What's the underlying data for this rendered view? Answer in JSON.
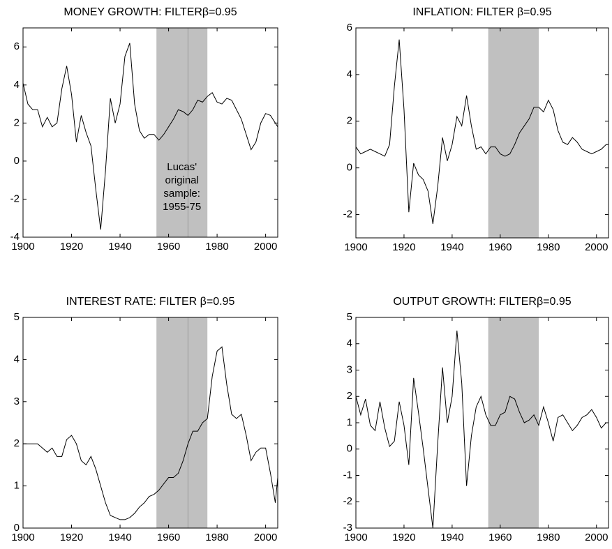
{
  "chart_data": [
    {
      "type": "line",
      "title": "MONEY GROWTH: FILTERβ=0.95",
      "color": "#000000",
      "shade": [
        1955,
        1976
      ],
      "shade_color": "#c0c0c0",
      "vline": 1968,
      "vline_color": "#9a9a9a",
      "annotation": [
        "Lucas'",
        "original",
        "sample:",
        "1955-75"
      ],
      "xlim": [
        1900,
        2005
      ],
      "xticks": [
        1900,
        1920,
        1940,
        1960,
        1980,
        2000
      ],
      "ylim": [
        -4,
        7
      ],
      "yticks": [
        -4,
        -2,
        0,
        2,
        4,
        6
      ],
      "x": [
        1900,
        1902,
        1904,
        1906,
        1908,
        1910,
        1912,
        1914,
        1916,
        1918,
        1920,
        1922,
        1924,
        1926,
        1928,
        1930,
        1932,
        1934,
        1936,
        1938,
        1940,
        1942,
        1944,
        1946,
        1948,
        1950,
        1952,
        1954,
        1956,
        1958,
        1960,
        1962,
        1964,
        1966,
        1968,
        1970,
        1972,
        1974,
        1976,
        1978,
        1980,
        1982,
        1984,
        1986,
        1988,
        1990,
        1992,
        1994,
        1996,
        1998,
        2000,
        2002,
        2004,
        2005
      ],
      "values": [
        4.1,
        3.0,
        2.7,
        2.7,
        1.8,
        2.3,
        1.8,
        2.0,
        3.8,
        5.0,
        3.5,
        1.0,
        2.4,
        1.5,
        0.8,
        -1.5,
        -3.6,
        -0.5,
        3.3,
        2.0,
        3.0,
        5.5,
        6.2,
        3.0,
        1.6,
        1.2,
        1.4,
        1.4,
        1.1,
        1.4,
        1.8,
        2.2,
        2.7,
        2.6,
        2.4,
        2.7,
        3.2,
        3.1,
        3.4,
        3.6,
        3.1,
        3.0,
        3.3,
        3.2,
        2.7,
        2.2,
        1.4,
        0.6,
        1.0,
        2.0,
        2.5,
        2.4,
        2.0,
        1.8
      ]
    },
    {
      "type": "line",
      "title": "INFLATION: FILTER β=0.95",
      "color": "#000000",
      "shade": [
        1955,
        1976
      ],
      "shade_color": "#c0c0c0",
      "xlim": [
        1900,
        2005
      ],
      "xticks": [
        1900,
        1920,
        1940,
        1960,
        1980,
        2000
      ],
      "ylim": [
        -3,
        6
      ],
      "yticks": [
        -2,
        0,
        2,
        4,
        6
      ],
      "x": [
        1900,
        1902,
        1904,
        1906,
        1908,
        1910,
        1912,
        1914,
        1916,
        1918,
        1920,
        1922,
        1924,
        1926,
        1928,
        1930,
        1932,
        1934,
        1936,
        1938,
        1940,
        1942,
        1944,
        1946,
        1948,
        1950,
        1952,
        1954,
        1956,
        1958,
        1960,
        1962,
        1964,
        1966,
        1968,
        1970,
        1972,
        1974,
        1976,
        1978,
        1980,
        1982,
        1984,
        1986,
        1988,
        1990,
        1992,
        1994,
        1996,
        1998,
        2000,
        2002,
        2004,
        2005
      ],
      "values": [
        0.9,
        0.6,
        0.7,
        0.8,
        0.7,
        0.6,
        0.5,
        1.0,
        3.5,
        5.5,
        2.5,
        -1.9,
        0.2,
        -0.3,
        -0.5,
        -1.0,
        -2.4,
        -0.8,
        1.3,
        0.3,
        1.0,
        2.2,
        1.8,
        3.1,
        1.8,
        0.8,
        0.9,
        0.6,
        0.9,
        0.9,
        0.6,
        0.5,
        0.6,
        1.0,
        1.5,
        1.8,
        2.1,
        2.6,
        2.6,
        2.4,
        2.9,
        2.5,
        1.6,
        1.1,
        1.0,
        1.3,
        1.1,
        0.8,
        0.7,
        0.6,
        0.7,
        0.8,
        1.0,
        1.0
      ]
    },
    {
      "type": "line",
      "title": "INTEREST RATE: FILTER β=0.95",
      "color": "#000000",
      "shade": [
        1955,
        1976
      ],
      "shade_color": "#c0c0c0",
      "vline": 1968,
      "vline_color": "#9a9a9a",
      "xlim": [
        1900,
        2005
      ],
      "xticks": [
        1900,
        1920,
        1940,
        1960,
        1980,
        2000
      ],
      "ylim": [
        0,
        5
      ],
      "yticks": [
        0,
        1,
        2,
        3,
        4,
        5
      ],
      "x": [
        1900,
        1902,
        1904,
        1906,
        1908,
        1910,
        1912,
        1914,
        1916,
        1918,
        1920,
        1922,
        1924,
        1926,
        1928,
        1930,
        1932,
        1934,
        1936,
        1938,
        1940,
        1942,
        1944,
        1946,
        1948,
        1950,
        1952,
        1954,
        1956,
        1958,
        1960,
        1962,
        1964,
        1966,
        1968,
        1970,
        1972,
        1974,
        1976,
        1978,
        1980,
        1982,
        1984,
        1986,
        1988,
        1990,
        1992,
        1994,
        1996,
        1998,
        2000,
        2002,
        2004,
        2005
      ],
      "values": [
        2.0,
        2.0,
        2.0,
        2.0,
        1.9,
        1.8,
        1.9,
        1.7,
        1.7,
        2.1,
        2.2,
        2.0,
        1.6,
        1.5,
        1.7,
        1.4,
        1.0,
        0.6,
        0.3,
        0.25,
        0.2,
        0.2,
        0.25,
        0.35,
        0.5,
        0.6,
        0.75,
        0.8,
        0.9,
        1.05,
        1.2,
        1.2,
        1.3,
        1.6,
        2.0,
        2.3,
        2.3,
        2.5,
        2.6,
        3.6,
        4.2,
        4.3,
        3.4,
        2.7,
        2.6,
        2.7,
        2.2,
        1.6,
        1.8,
        1.9,
        1.9,
        1.3,
        0.6,
        1.2
      ]
    },
    {
      "type": "line",
      "title": "OUTPUT GROWTH: FILTERβ=0.95",
      "color": "#000000",
      "shade": [
        1955,
        1976
      ],
      "shade_color": "#c0c0c0",
      "xlim": [
        1900,
        2005
      ],
      "xticks": [
        1900,
        1920,
        1940,
        1960,
        1980,
        2000
      ],
      "ylim": [
        -3,
        5
      ],
      "yticks": [
        -3,
        -2,
        -1,
        0,
        1,
        2,
        3,
        4,
        5
      ],
      "x": [
        1900,
        1902,
        1904,
        1906,
        1908,
        1910,
        1912,
        1914,
        1916,
        1918,
        1920,
        1922,
        1924,
        1926,
        1928,
        1930,
        1932,
        1934,
        1936,
        1938,
        1940,
        1942,
        1944,
        1946,
        1948,
        1950,
        1952,
        1954,
        1956,
        1958,
        1960,
        1962,
        1964,
        1966,
        1968,
        1970,
        1972,
        1974,
        1976,
        1978,
        1980,
        1982,
        1984,
        1986,
        1988,
        1990,
        1992,
        1994,
        1996,
        1998,
        2000,
        2002,
        2004,
        2005
      ],
      "values": [
        2.0,
        1.3,
        1.9,
        0.9,
        0.7,
        1.8,
        0.8,
        0.1,
        0.3,
        1.8,
        0.9,
        -0.6,
        2.7,
        1.4,
        0.0,
        -1.5,
        -3.0,
        0.2,
        3.1,
        1.0,
        2.0,
        4.5,
        2.5,
        -1.4,
        0.5,
        1.6,
        2.0,
        1.3,
        0.9,
        0.9,
        1.3,
        1.4,
        2.0,
        1.9,
        1.4,
        1.0,
        1.1,
        1.3,
        0.9,
        1.6,
        1.0,
        0.3,
        1.2,
        1.3,
        1.0,
        0.7,
        0.9,
        1.2,
        1.3,
        1.5,
        1.2,
        0.8,
        1.0,
        1.0
      ]
    }
  ]
}
